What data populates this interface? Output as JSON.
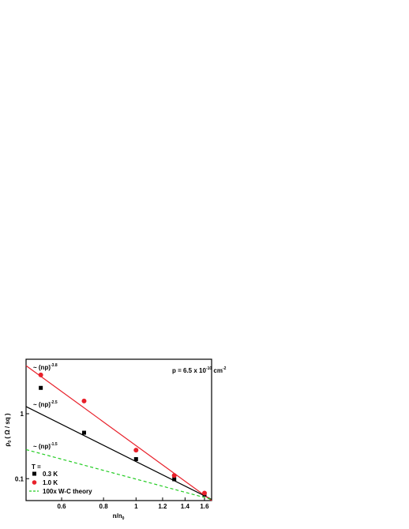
{
  "chart_data": {
    "type": "scatter",
    "x_label": [
      "n/n",
      "0"
    ],
    "y_label": [
      "ρ",
      "0",
      " ( Ω / sq )"
    ],
    "xscale": "log",
    "yscale": "log",
    "xlim": [
      0.47,
      1.68
    ],
    "ylim": [
      0.046,
      6.9
    ],
    "xticks": [
      0.6,
      0.8,
      1,
      1.2,
      1.4,
      1.6
    ],
    "yticks": [
      0.1,
      1
    ],
    "legend_title": "T =",
    "series": [
      {
        "name": "0.3 K",
        "color": "#000000",
        "marker": "square",
        "x": [
          0.52,
          0.7,
          1.0,
          1.3,
          1.6
        ],
        "values": [
          2.5,
          0.51,
          0.2,
          0.098,
          0.057
        ]
      },
      {
        "name": "1.0 K",
        "color": "#e8202a",
        "marker": "circle",
        "x": [
          0.52,
          0.7,
          1.0,
          1.3,
          1.6
        ],
        "values": [
          3.96,
          1.57,
          0.275,
          0.112,
          0.06
        ]
      },
      {
        "name": "100x W-C theory",
        "color": "#22cc22",
        "marker": "dashed",
        "x": [
          0.47,
          1.68
        ],
        "values": [
          0.28,
          0.048
        ]
      }
    ],
    "fit_lines": [
      {
        "color": "#000000",
        "x": [
          0.47,
          1.68
        ],
        "values": [
          1.29,
          0.048
        ]
      },
      {
        "color": "#e8202a",
        "x": [
          0.47,
          1.68
        ],
        "values": [
          5.5,
          0.046
        ]
      }
    ],
    "annotations": [
      {
        "parts": [
          "~ (np)",
          "-3.8"
        ]
      },
      {
        "parts": [
          "~ (np)",
          "-2.5"
        ]
      },
      {
        "parts": [
          "~ (np)",
          "-1.5"
        ]
      },
      {
        "parts": [
          "p = 6.5 x 10",
          "-10",
          " cm",
          "-2"
        ]
      }
    ]
  }
}
